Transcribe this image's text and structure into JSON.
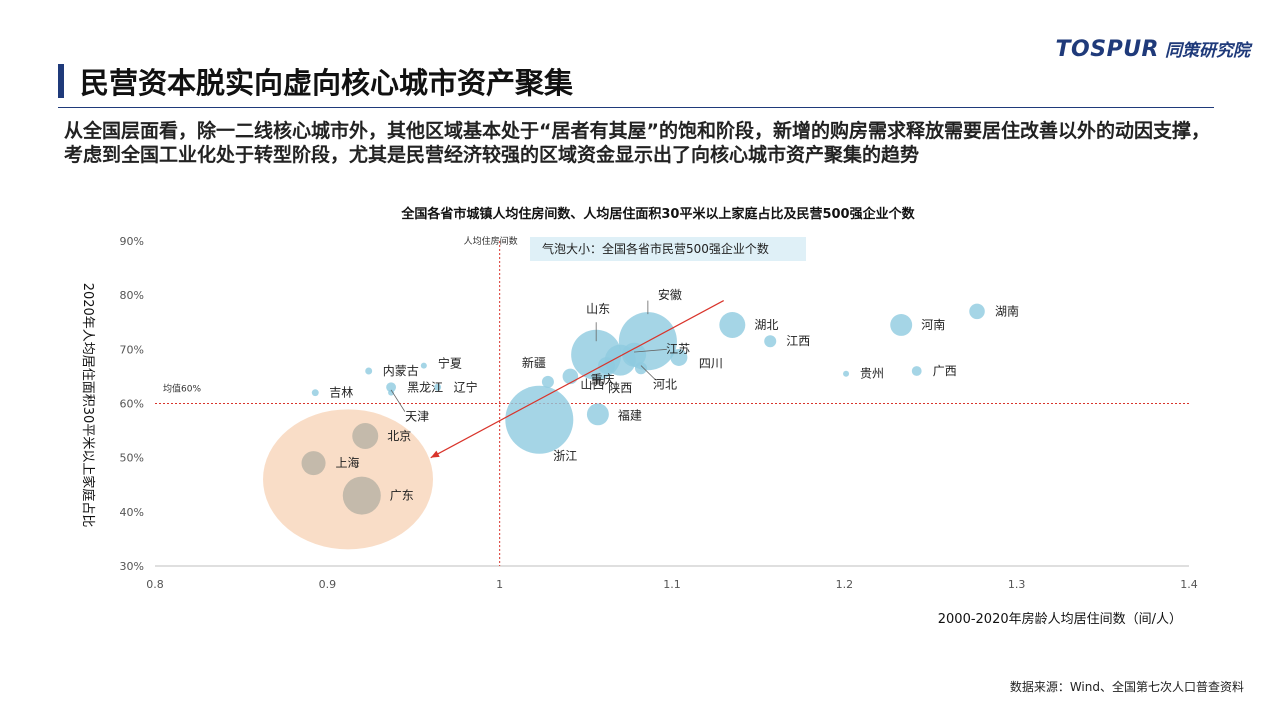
{
  "header": {
    "logo_brand": "TOSPUR",
    "logo_cn": "同策研究院",
    "title": "民营资本脱实向虚向核心城市资产聚集",
    "subtitle": "从全国层面看，除一二线核心城市外，其他区域基本处于“居者有其屋”的饱和阶段，新增的购房需求释放需要居住改善以外的动因支撑，考虑到全国工业化处于转型阶段，尤其是民营经济较强的区域资金显示出了向核心城市资产聚集的趋势"
  },
  "source": "数据来源：Wind、全国第七次人口普查资料",
  "colors": {
    "bubble": "#8fcbe0",
    "bubble_highlight": "#b7b2a4",
    "ellipse": "#f8d7bd",
    "refline": "#d9342b",
    "arrow": "#d9342b",
    "legend_bg": "#dff0f7",
    "axis": "#555555"
  },
  "chart_data": {
    "type": "scatter",
    "title": "全国各省市城镇人均住房间数、人均居住面积30平米以上家庭占比及民营500强企业个数",
    "xlabel": "2000-2020年房龄人均居住间数（间/人）",
    "ylabel": "2020年人均居住面积30平米以上家庭占比",
    "xlim": [
      0.8,
      1.4
    ],
    "ylim": [
      30,
      90
    ],
    "xticks": [
      "0.8",
      "0.9",
      "1",
      "1.1",
      "1.2",
      "1.3",
      "1.4"
    ],
    "yticks": [
      "30%",
      "40%",
      "50%",
      "60%",
      "70%",
      "80%",
      "90%"
    ],
    "bubble_note": "气泡大小：全国各省市民营500强企业个数",
    "ref_x": {
      "value": 1.0,
      "label": "人均住房间数"
    },
    "ref_y": {
      "value": 60,
      "label": "均值60%"
    },
    "trend_arrow": {
      "from": [
        1.13,
        79
      ],
      "to": [
        0.96,
        50
      ]
    },
    "points": [
      {
        "name": "吉林",
        "x": 0.893,
        "y": 62,
        "size": 1
      },
      {
        "name": "内蒙古",
        "x": 0.924,
        "y": 66,
        "size": 1
      },
      {
        "name": "宁夏",
        "x": 0.956,
        "y": 67,
        "size": 0.5
      },
      {
        "name": "黑龙江",
        "x": 0.937,
        "y": 63,
        "size": 2
      },
      {
        "name": "辽宁",
        "x": 0.964,
        "y": 63,
        "size": 1
      },
      {
        "name": "天津",
        "x": 0.937,
        "y": 62,
        "size": 0.5
      },
      {
        "name": "北京",
        "x": 0.922,
        "y": 54,
        "size": 14
      },
      {
        "name": "上海",
        "x": 0.892,
        "y": 49,
        "size": 12
      },
      {
        "name": "广东",
        "x": 0.92,
        "y": 43,
        "size": 30
      },
      {
        "name": "新疆",
        "x": 1.028,
        "y": 64,
        "size": 3
      },
      {
        "name": "山西",
        "x": 1.041,
        "y": 65,
        "size": 5
      },
      {
        "name": "山东",
        "x": 1.056,
        "y": 69,
        "size": 52
      },
      {
        "name": "重庆",
        "x": 1.062,
        "y": 67,
        "size": 6
      },
      {
        "name": "陕西",
        "x": 1.07,
        "y": 68,
        "size": 20
      },
      {
        "name": "安徽",
        "x": 1.086,
        "y": 71.5,
        "size": 70
      },
      {
        "name": "江苏",
        "x": 1.078,
        "y": 69,
        "size": 12
      },
      {
        "name": "四川",
        "x": 1.104,
        "y": 68.5,
        "size": 6
      },
      {
        "name": "河北",
        "x": 1.082,
        "y": 66.5,
        "size": 3
      },
      {
        "name": "浙江",
        "x": 1.023,
        "y": 57,
        "size": 96
      },
      {
        "name": "福建",
        "x": 1.057,
        "y": 58,
        "size": 10
      },
      {
        "name": "湖北",
        "x": 1.135,
        "y": 74.5,
        "size": 14
      },
      {
        "name": "江西",
        "x": 1.157,
        "y": 71.5,
        "size": 3
      },
      {
        "name": "贵州",
        "x": 1.201,
        "y": 65.5,
        "size": 0.3
      },
      {
        "name": "河南",
        "x": 1.233,
        "y": 74.5,
        "size": 10
      },
      {
        "name": "广西",
        "x": 1.242,
        "y": 66,
        "size": 2
      },
      {
        "name": "湖南",
        "x": 1.277,
        "y": 77,
        "size": 5
      }
    ]
  }
}
